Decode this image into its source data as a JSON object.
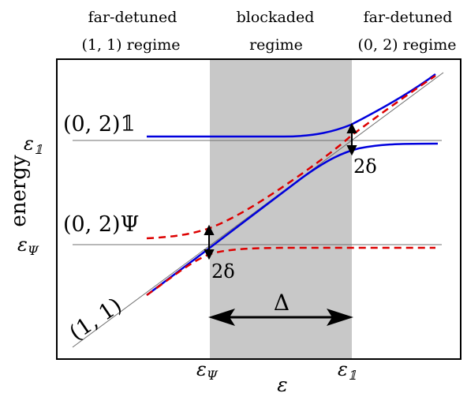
{
  "regimes": {
    "left": [
      "far-detuned",
      "(1, 1)  regime"
    ],
    "middle": [
      "blockaded",
      "regime"
    ],
    "right": [
      "far-detuned",
      "(0, 2)  regime"
    ]
  },
  "y_axis_label": "energy",
  "x_axis_label": "ε",
  "level_labels": {
    "upper_state": "(0, 2)𝟙",
    "lower_state": "(0, 2)Ψ",
    "diagonal_state": "(1, 1)"
  },
  "energy_ticks": {
    "upper": "ε",
    "upper_sub": "𝟙",
    "lower": "ε",
    "lower_sub": "Ψ"
  },
  "detuning_ticks": {
    "left": "ε",
    "left_sub": "Ψ",
    "right": "ε",
    "right_sub": "𝟙"
  },
  "gap_labels": {
    "upper": "2δ",
    "lower": "2δ"
  },
  "width_label": "Δ",
  "colors": {
    "blue_curve": "#0000dd",
    "red_dashed_curve": "#dd0000",
    "shaded_region": "#c8c8c8",
    "reference_lines": "#707070"
  }
}
